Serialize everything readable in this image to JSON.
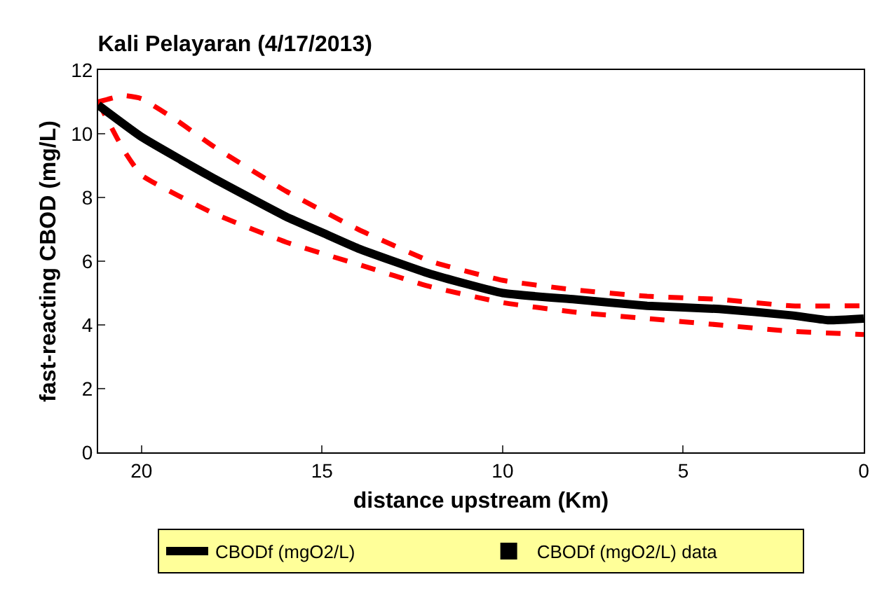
{
  "chart_data": {
    "type": "line",
    "title": "Kali Pelayaran (4/17/2013)",
    "xlabel": "distance upstream (Km)",
    "ylabel": "fast-reacting CBOD (mg/L)",
    "xlim": [
      21.2,
      0
    ],
    "xticks": [
      20,
      15,
      10,
      5,
      0
    ],
    "ylim": [
      0,
      12
    ],
    "yticks": [
      0,
      2,
      4,
      6,
      8,
      10,
      12
    ],
    "legend": "bottom",
    "series": [
      {
        "color": "#ff0000",
        "line_style": "dashed",
        "x": [
          21.2,
          20.5,
          20,
          19,
          18,
          16,
          14,
          12,
          10,
          8,
          6,
          4,
          2,
          0
        ],
        "values": [
          11.0,
          11.2,
          11.1,
          10.4,
          9.6,
          8.2,
          7.0,
          6.0,
          5.4,
          5.1,
          4.9,
          4.8,
          4.6,
          4.6
        ]
      },
      {
        "color": "#ff0000",
        "line_style": "dashed",
        "x": [
          21.2,
          20.5,
          20,
          18,
          16,
          14,
          12,
          10,
          8,
          6,
          4,
          2,
          0
        ],
        "values": [
          11.0,
          9.5,
          8.7,
          7.5,
          6.6,
          5.9,
          5.2,
          4.7,
          4.4,
          4.2,
          4.0,
          3.8,
          3.7
        ]
      },
      {
        "name": "CBODf (mgO2/L)",
        "color": "#000000",
        "line_style": "solid",
        "x": [
          21.2,
          20,
          18,
          16,
          15,
          14,
          12,
          10,
          8,
          6,
          4,
          2,
          1,
          0
        ],
        "values": [
          10.9,
          9.9,
          8.6,
          7.4,
          6.9,
          6.4,
          5.6,
          5.0,
          4.8,
          4.6,
          4.5,
          4.3,
          4.15,
          4.2
        ]
      },
      {
        "name": "CBODf (mgO2/L) data",
        "type": "scatter",
        "marker": "square",
        "color": "#000000"
      }
    ]
  }
}
